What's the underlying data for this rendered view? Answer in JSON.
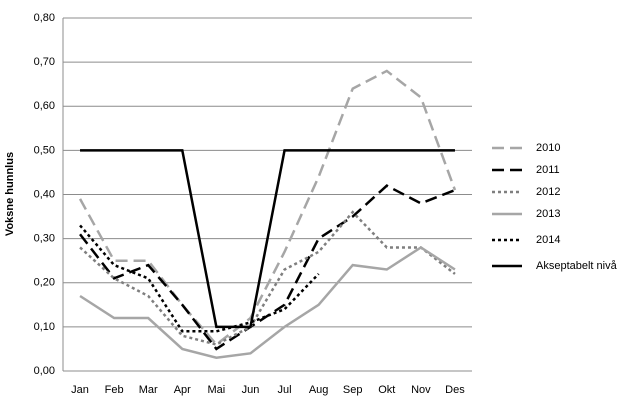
{
  "chart_data": {
    "type": "line",
    "y_label": "Voksne hunnlus",
    "categories": [
      "Jan",
      "Feb",
      "Mar",
      "Apr",
      "Mai",
      "Jun",
      "Jul",
      "Aug",
      "Sep",
      "Okt",
      "Nov",
      "Des"
    ],
    "series": [
      {
        "name": "2010",
        "color": "#a6a6a6",
        "style": "dashed",
        "values": [
          0.39,
          0.25,
          0.25,
          0.15,
          0.06,
          0.12,
          0.27,
          0.44,
          0.64,
          0.68,
          0.62,
          0.41
        ]
      },
      {
        "name": "2011",
        "color": "#000000",
        "style": "dashed",
        "values": [
          0.31,
          0.21,
          0.24,
          0.15,
          0.05,
          0.1,
          0.15,
          0.3,
          0.35,
          0.42,
          0.38,
          0.41
        ]
      },
      {
        "name": "2012",
        "color": "#7f7f7f",
        "style": "dotted",
        "values": [
          0.28,
          0.21,
          0.17,
          0.08,
          0.06,
          0.1,
          0.23,
          0.27,
          0.36,
          0.28,
          0.28,
          0.22
        ]
      },
      {
        "name": "2013",
        "color": "#a6a6a6",
        "style": "solid",
        "values": [
          0.17,
          0.12,
          0.12,
          0.05,
          0.03,
          0.04,
          0.1,
          0.15,
          0.24,
          0.23,
          0.28,
          0.23
        ]
      },
      {
        "name": "2014",
        "color": "#000000",
        "style": "dotted",
        "values": [
          0.33,
          0.24,
          0.21,
          0.09,
          0.09,
          0.11,
          0.14,
          0.22,
          null,
          null,
          null,
          null
        ]
      },
      {
        "name": "Akseptabelt nivå",
        "color": "#000000",
        "style": "solid",
        "values": [
          0.5,
          0.5,
          0.5,
          0.5,
          0.1,
          0.1,
          0.5,
          0.5,
          0.5,
          0.5,
          0.5,
          0.5
        ]
      }
    ],
    "ylim": [
      0,
      0.8
    ],
    "yticks": [
      {
        "value": 0,
        "label": "0,00"
      },
      {
        "value": 0.1,
        "label": "0,10"
      },
      {
        "value": 0.2,
        "label": "0,20"
      },
      {
        "value": 0.3,
        "label": "0,30"
      },
      {
        "value": 0.4,
        "label": "0,40"
      },
      {
        "value": 0.5,
        "label": "0,50"
      },
      {
        "value": 0.6,
        "label": "0,60"
      },
      {
        "value": 0.7,
        "label": "0,70"
      },
      {
        "value": 0.8,
        "label": "0,80"
      }
    ],
    "grid": true,
    "legend": "right"
  }
}
